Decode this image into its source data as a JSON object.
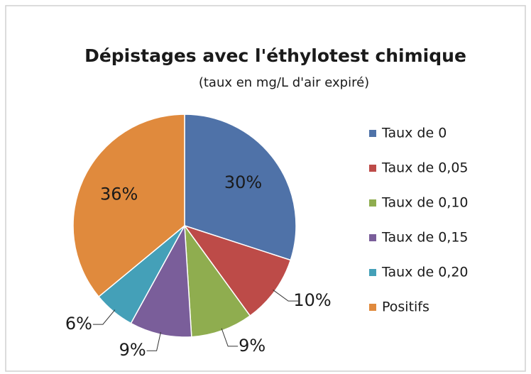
{
  "chart_data": {
    "type": "pie",
    "title": "Dépistages avec l'éthylotest chimique",
    "subtitle": "(taux en mg/L d'air expiré)",
    "categories": [
      "Taux de 0",
      "Taux de 0,05",
      "Taux de 0,10",
      "Taux de 0,15",
      "Taux de 0,20",
      "Positifs"
    ],
    "values": [
      30,
      10,
      9,
      9,
      6,
      36
    ],
    "value_labels": [
      "30%",
      "10%",
      "9%",
      "9%",
      "6%",
      "36%"
    ],
    "colors": [
      "#4f72a8",
      "#bd4b48",
      "#8fad4f",
      "#7a5e9a",
      "#44a0b8",
      "#e08a3d"
    ]
  }
}
